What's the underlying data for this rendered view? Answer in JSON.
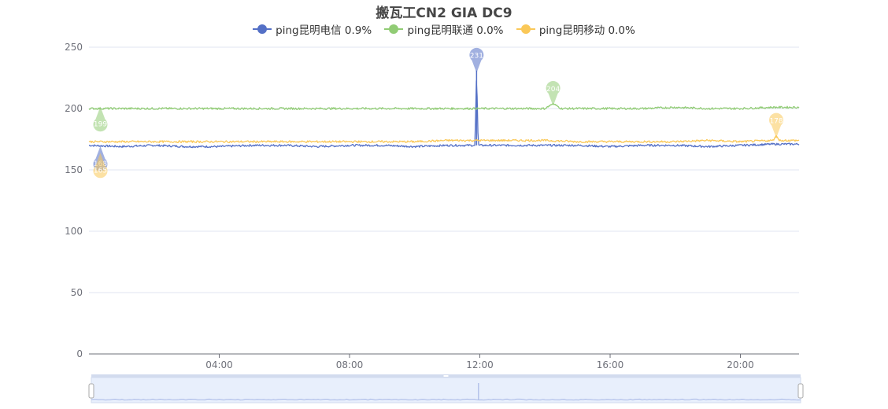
{
  "chart_data": {
    "type": "line",
    "title": "搬瓦工CN2 GIA DC9",
    "ylim": [
      0,
      250
    ],
    "y_ticks": [
      "0",
      "50",
      "100",
      "150",
      "200",
      "250"
    ],
    "x_range_hours": [
      0.0,
      21.8
    ],
    "x_ticks": [
      "04:00",
      "08:00",
      "12:00",
      "16:00",
      "20:00"
    ],
    "grid": "horizontal",
    "legend_position": "top-center",
    "series": [
      {
        "name": "ping昆明电信 0.9%",
        "color": "#5470c6",
        "x": [
          0.0,
          1.0,
          2.0,
          3.0,
          4.0,
          5.0,
          6.0,
          7.0,
          8.0,
          9.0,
          10.0,
          11.0,
          11.85,
          11.9,
          11.95,
          12.0,
          13.0,
          14.0,
          15.0,
          16.0,
          17.0,
          18.0,
          19.0,
          20.0,
          21.0,
          21.8
        ],
        "values": [
          170,
          169,
          170,
          169,
          169,
          170,
          170,
          169,
          170,
          170,
          169,
          170,
          170,
          231,
          170,
          170,
          170,
          170,
          170,
          169,
          170,
          170,
          169,
          170,
          171,
          171
        ],
        "min": {
          "x": 0.35,
          "y": 168,
          "label": "168"
        },
        "max": {
          "x": 11.9,
          "y": 231,
          "label": "231"
        }
      },
      {
        "name": "ping昆明联通 0.0%",
        "color": "#91cc75",
        "x": [
          0.0,
          1.0,
          2.0,
          3.0,
          4.0,
          5.0,
          6.0,
          7.0,
          8.0,
          9.0,
          10.0,
          11.0,
          12.0,
          13.0,
          14.0,
          14.25,
          14.5,
          15.0,
          16.0,
          17.0,
          18.0,
          19.0,
          20.0,
          21.0,
          21.8
        ],
        "values": [
          200,
          200,
          200,
          200,
          200,
          200,
          200,
          200,
          200,
          200,
          200,
          200,
          200,
          200,
          200,
          204,
          200,
          200,
          200,
          200,
          201,
          200,
          200,
          201,
          201
        ],
        "min": {
          "x": 0.35,
          "y": 199,
          "label": "199"
        },
        "max": {
          "x": 14.25,
          "y": 204,
          "label": "204"
        }
      },
      {
        "name": "ping昆明移动 0.0%",
        "color": "#fac858",
        "x": [
          0.0,
          1.0,
          2.0,
          3.0,
          4.0,
          5.0,
          6.0,
          7.0,
          8.0,
          9.0,
          10.0,
          11.0,
          12.0,
          13.0,
          14.0,
          15.0,
          16.0,
          17.0,
          18.0,
          19.0,
          20.0,
          21.0,
          21.1,
          21.2,
          21.8
        ],
        "values": [
          173,
          173,
          173,
          173,
          173,
          173,
          173,
          173,
          173,
          173,
          173,
          174,
          174,
          174,
          174,
          173,
          173,
          173,
          173,
          174,
          173,
          174,
          178,
          174,
          174
        ],
        "min": {
          "x": 0.35,
          "y": 165,
          "label": "165"
        },
        "max": {
          "x": 21.1,
          "y": 178,
          "label": "178"
        }
      }
    ]
  },
  "datazoom": {
    "start_percent": 0,
    "end_percent": 100,
    "handle_color": "#6e8fd5"
  }
}
